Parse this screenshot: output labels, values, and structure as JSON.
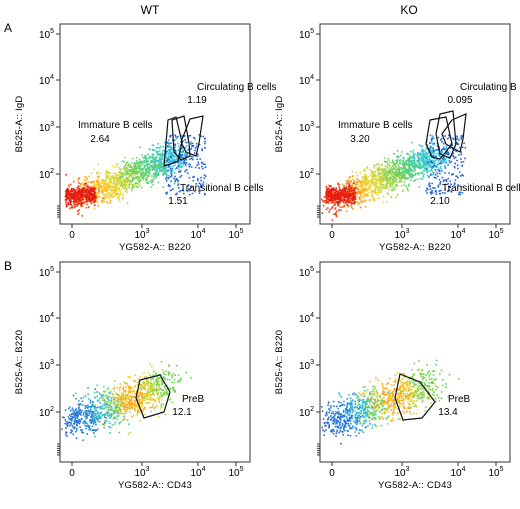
{
  "figure": {
    "columns": [
      "WT",
      "KO"
    ],
    "rows": [
      "A",
      "B"
    ]
  },
  "chart_data": [
    {
      "type": "scatter",
      "panel": "A",
      "condition": "WT",
      "xlabel": "YG582-A:: B220",
      "ylabel": "B525-A:: IgD",
      "x_ticks": [
        "0",
        "10^3",
        "10^4",
        "10^5"
      ],
      "y_ticks": [
        "10^2",
        "10^3",
        "10^4",
        "10^5"
      ],
      "gates": [
        {
          "name": "Circulating B cells",
          "value": "1.19"
        },
        {
          "name": "Immature B cells",
          "value": "2.64"
        },
        {
          "name": "Transitional B cells",
          "value": "1.51"
        }
      ]
    },
    {
      "type": "scatter",
      "panel": "A",
      "condition": "KO",
      "xlabel": "YG582-A:: B220",
      "ylabel": "B525-A:: IgD",
      "x_ticks": [
        "0",
        "10^3",
        "10^4",
        "10^5"
      ],
      "y_ticks": [
        "10^2",
        "10^3",
        "10^4",
        "10^5"
      ],
      "gates": [
        {
          "name": "Circulating B cells",
          "value": "0.095"
        },
        {
          "name": "Immature B cells",
          "value": "3.20"
        },
        {
          "name": "Transitional B cells",
          "value": "2.10"
        }
      ]
    },
    {
      "type": "scatter",
      "panel": "B",
      "condition": "WT",
      "xlabel": "YG582-A:: CD43",
      "ylabel": "B525-A:: B220",
      "x_ticks": [
        "0",
        "10^3",
        "10^4",
        "10^5"
      ],
      "y_ticks": [
        "10^2",
        "10^3",
        "10^4",
        "10^5"
      ],
      "gates": [
        {
          "name": "PreB",
          "value": "12.1"
        }
      ]
    },
    {
      "type": "scatter",
      "panel": "B",
      "condition": "KO",
      "xlabel": "YG582-A:: CD43",
      "ylabel": "B525-A:: B220",
      "x_ticks": [
        "0",
        "10^3",
        "10^4",
        "10^5"
      ],
      "y_ticks": [
        "10^2",
        "10^3",
        "10^4",
        "10^5"
      ],
      "gates": [
        {
          "name": "PreB",
          "value": "13.4"
        }
      ]
    }
  ]
}
